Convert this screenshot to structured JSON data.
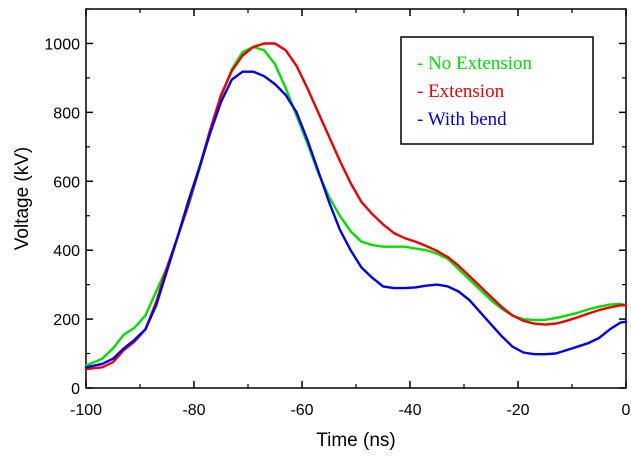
{
  "chart_data": {
    "type": "line",
    "title": "",
    "xlabel": "Time (ns)",
    "ylabel": "Voltage (kV)",
    "xlim": [
      -100,
      0
    ],
    "ylim": [
      0,
      1100
    ],
    "x_ticks": [
      -100,
      -80,
      -60,
      -40,
      -20,
      0
    ],
    "y_ticks": [
      0,
      200,
      400,
      600,
      800,
      1000
    ],
    "grid": false,
    "legend_position": "top-right",
    "series": [
      {
        "name": "No Extension",
        "legend_label": "- No Extension",
        "color": "#00e000",
        "x": [
          -100,
          -97,
          -95,
          -93,
          -91,
          -89,
          -87,
          -85,
          -83,
          -81,
          -79,
          -77,
          -75,
          -73,
          -71,
          -69,
          -67,
          -65,
          -63,
          -61,
          -59,
          -57,
          -55,
          -53,
          -51,
          -49,
          -47,
          -45,
          -43,
          -41,
          -39,
          -37,
          -35,
          -33,
          -31,
          -29,
          -27,
          -25,
          -23,
          -21,
          -19,
          -17,
          -15,
          -13,
          -11,
          -9,
          -7,
          -5,
          -3,
          -1,
          0
        ],
        "y": [
          65,
          85,
          115,
          155,
          175,
          210,
          280,
          350,
          440,
          530,
          635,
          745,
          845,
          925,
          975,
          990,
          980,
          940,
          870,
          790,
          710,
          625,
          555,
          500,
          455,
          425,
          415,
          410,
          410,
          410,
          405,
          400,
          390,
          375,
          345,
          315,
          285,
          255,
          230,
          210,
          200,
          197,
          198,
          203,
          210,
          218,
          228,
          236,
          242,
          244,
          240
        ]
      },
      {
        "name": "Extension",
        "legend_label": "- Extension",
        "color": "#ee0000",
        "x": [
          -100,
          -97,
          -95,
          -93,
          -91,
          -89,
          -87,
          -85,
          -83,
          -81,
          -79,
          -77,
          -75,
          -73,
          -71,
          -69,
          -67,
          -65,
          -63,
          -61,
          -59,
          -57,
          -55,
          -53,
          -51,
          -49,
          -47,
          -45,
          -43,
          -41,
          -39,
          -37,
          -35,
          -33,
          -31,
          -29,
          -27,
          -25,
          -23,
          -21,
          -19,
          -17,
          -15,
          -13,
          -11,
          -9,
          -7,
          -5,
          -3,
          -1,
          0
        ],
        "y": [
          55,
          60,
          75,
          110,
          135,
          170,
          250,
          350,
          440,
          535,
          640,
          750,
          850,
          920,
          965,
          990,
          1000,
          1000,
          980,
          935,
          870,
          800,
          730,
          660,
          595,
          540,
          505,
          475,
          450,
          435,
          425,
          412,
          398,
          380,
          355,
          325,
          295,
          265,
          235,
          210,
          195,
          187,
          184,
          187,
          195,
          205,
          216,
          226,
          234,
          240,
          240
        ]
      },
      {
        "name": "With bend",
        "legend_label": "- With bend",
        "color": "#0000ee",
        "x": [
          -100,
          -97,
          -95,
          -93,
          -91,
          -89,
          -87,
          -85,
          -83,
          -81,
          -79,
          -77,
          -75,
          -73,
          -71,
          -69,
          -67,
          -65,
          -63,
          -61,
          -59,
          -57,
          -55,
          -53,
          -51,
          -49,
          -47,
          -45,
          -43,
          -41,
          -39,
          -37,
          -35,
          -33,
          -31,
          -29,
          -27,
          -25,
          -23,
          -21,
          -19,
          -17,
          -15,
          -13,
          -11,
          -9,
          -7,
          -5,
          -3,
          -1,
          0
        ],
        "y": [
          60,
          70,
          85,
          115,
          140,
          170,
          240,
          340,
          440,
          545,
          640,
          740,
          830,
          895,
          918,
          918,
          905,
          882,
          850,
          800,
          720,
          630,
          540,
          460,
          400,
          350,
          320,
          295,
          290,
          290,
          292,
          297,
          300,
          295,
          280,
          255,
          220,
          185,
          150,
          120,
          103,
          98,
          98,
          100,
          110,
          120,
          130,
          145,
          170,
          190,
          192
        ]
      }
    ]
  }
}
